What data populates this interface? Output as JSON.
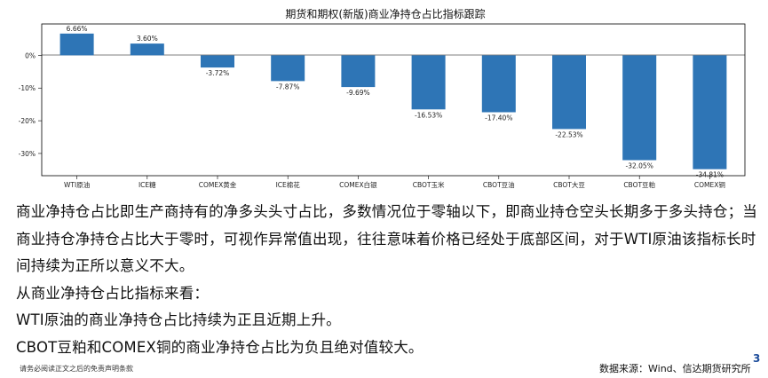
{
  "chart_data": {
    "type": "bar",
    "title": "期货和期权(新版)商业净持仓占比指标跟踪",
    "categories": [
      "WTI原油",
      "ICE糖",
      "COMEX黄金",
      "ICE棉花",
      "COMEX白银",
      "CBOT玉米",
      "CBOT豆油",
      "CBOT大豆",
      "CBOT豆粕",
      "COMEX铜"
    ],
    "values": [
      6.66,
      3.6,
      -3.72,
      -7.87,
      -9.69,
      -16.53,
      -17.4,
      -22.53,
      -32.05,
      -34.81
    ],
    "value_labels": [
      "6.66%",
      "3.60%",
      "-3.72%",
      "-7.87%",
      "-9.69%",
      "-16.53%",
      "-17.40%",
      "-22.53%",
      "-32.05%",
      "-34.81%"
    ],
    "yticks": [
      0,
      -10,
      -20,
      -30
    ],
    "ytick_labels": [
      "0%",
      "-10%",
      "-20%",
      "-30%"
    ],
    "ylim": [
      -36.8,
      9.6
    ],
    "bar_color": "#2e75b6",
    "grid": false,
    "legend": "none"
  },
  "text": {
    "para1": "商业净持仓占比即生产商持有的净多头头寸占比，多数情况位于零轴以下，即商业持仓空头长期多于多头持仓；当商业持仓净持仓占比大于零时，可视作异常值出现，往往意味着价格已经处于底部区间，对于WTI原油该指标长时间持续为正所以意义不大。",
    "line2": "从商业净持仓占比指标来看：",
    "line3": "WTI原油的商业净持仓占比持续为正且近期上升。",
    "line4": "CBOT豆粕和COMEX铜的商业净持仓占比为负且绝对值较大。"
  },
  "footer": {
    "disclaimer": "请务必阅读正文之后的免责声明条款",
    "source": "数据来源：Wind、信达期货研究所",
    "page_number": "3"
  }
}
